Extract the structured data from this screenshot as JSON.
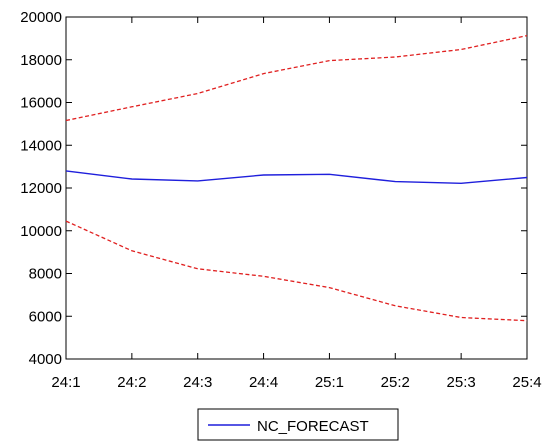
{
  "chart_data": {
    "type": "line",
    "title": "",
    "xlabel": "",
    "ylabel": "",
    "categories": [
      "24:1",
      "24:2",
      "24:3",
      "24:4",
      "25:1",
      "25:2",
      "25:3",
      "25:4"
    ],
    "ylim": [
      4000,
      20000
    ],
    "yticks": [
      4000,
      6000,
      8000,
      10000,
      12000,
      14000,
      16000,
      18000,
      20000
    ],
    "grid": false,
    "legend_position": "bottom-center",
    "series": [
      {
        "name": "NC_FORECAST",
        "color": "#1f1fdc",
        "style": "solid",
        "values": [
          12800,
          12420,
          12330,
          12610,
          12640,
          12300,
          12220,
          12490
        ]
      },
      {
        "color": "#e02020",
        "style": "dashed",
        "values": [
          15160,
          15800,
          16420,
          17350,
          17960,
          18130,
          18480,
          19130
        ]
      },
      {
        "color": "#e02020",
        "style": "dashed",
        "values": [
          10450,
          9060,
          8220,
          7870,
          7340,
          6490,
          5940,
          5790
        ]
      }
    ]
  }
}
